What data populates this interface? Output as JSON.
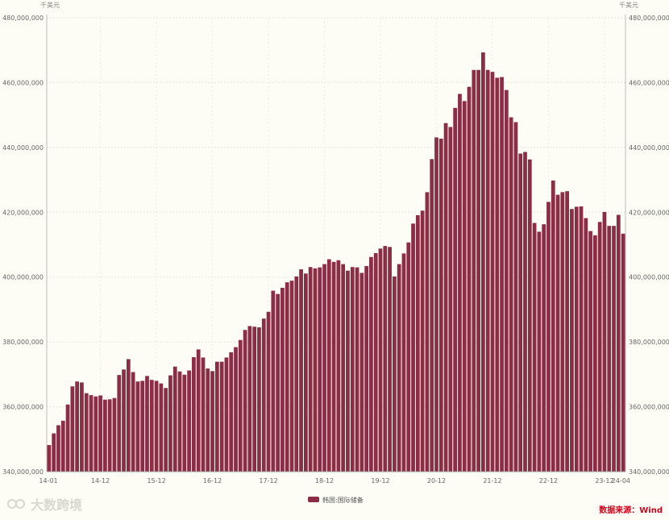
{
  "chart_data": {
    "type": "bar",
    "unit_left": "千美元",
    "unit_right": "千美元",
    "ylim": [
      340000000,
      480000000
    ],
    "yticks": [
      340000000,
      360000000,
      380000000,
      400000000,
      420000000,
      440000000,
      460000000,
      480000000
    ],
    "ytick_labels": [
      "340,000,000",
      "360,000,000",
      "380,000,000",
      "400,000,000",
      "420,000,000",
      "440,000,000",
      "460,000,000",
      "480,000,000"
    ],
    "xtick_labels": [
      {
        "label": "14-01",
        "index": 0
      },
      {
        "label": "14-12",
        "index": 11
      },
      {
        "label": "15-12",
        "index": 23
      },
      {
        "label": "16-12",
        "index": 35
      },
      {
        "label": "17-12",
        "index": 47
      },
      {
        "label": "18-12",
        "index": 59
      },
      {
        "label": "19-12",
        "index": 71
      },
      {
        "label": "20-12",
        "index": 83
      },
      {
        "label": "21-12",
        "index": 95
      },
      {
        "label": "22-12",
        "index": 107
      },
      {
        "label": "23-12",
        "index": 119
      },
      {
        "label": "24-04",
        "index": 123
      }
    ],
    "series": [
      {
        "name": "韩国:国际储备",
        "color": "#8b2d44",
        "values": [
          348200000,
          351800000,
          354300000,
          355700000,
          360700000,
          366300000,
          367800000,
          367500000,
          364200000,
          363600000,
          363200000,
          363500000,
          362200000,
          362300000,
          362700000,
          369800000,
          371500000,
          374700000,
          370700000,
          367800000,
          368000000,
          369500000,
          368300000,
          368000000,
          367200000,
          365800000,
          369700000,
          372400000,
          370900000,
          369900000,
          371200000,
          375300000,
          377700000,
          375200000,
          371800000,
          371000000,
          373900000,
          373900000,
          375200000,
          376800000,
          378400000,
          380600000,
          383700000,
          384900000,
          384700000,
          384500000,
          387200000,
          389300000,
          395800000,
          394800000,
          396700000,
          398400000,
          398900000,
          400200000,
          402400000,
          401100000,
          403100000,
          402700000,
          403000000,
          404000000,
          405500000,
          404700000,
          405200000,
          404000000,
          402000000,
          403100000,
          403000000,
          401300000,
          403400000,
          406200000,
          407400000,
          408800000,
          409600000,
          409300000,
          400200000,
          404000000,
          407300000,
          410700000,
          416500000,
          419100000,
          420500000,
          426200000,
          436400000,
          443100000,
          442700000,
          447500000,
          446300000,
          452200000,
          456500000,
          454300000,
          458700000,
          463900000,
          463900000,
          469300000,
          463900000,
          463300000,
          461500000,
          461700000,
          457700000,
          449300000,
          447800000,
          438100000,
          438600000,
          436300000,
          416700000,
          414000000,
          416300000,
          423200000,
          429800000,
          425400000,
          426200000,
          426500000,
          421000000,
          421700000,
          421800000,
          418200000,
          414200000,
          412900000,
          417000000,
          420100000,
          415800000,
          415800000,
          419200000,
          413400000
        ]
      }
    ],
    "legend": "bottom-center"
  },
  "source_label": "数据来源：Wind",
  "watermark": "大数跨境"
}
